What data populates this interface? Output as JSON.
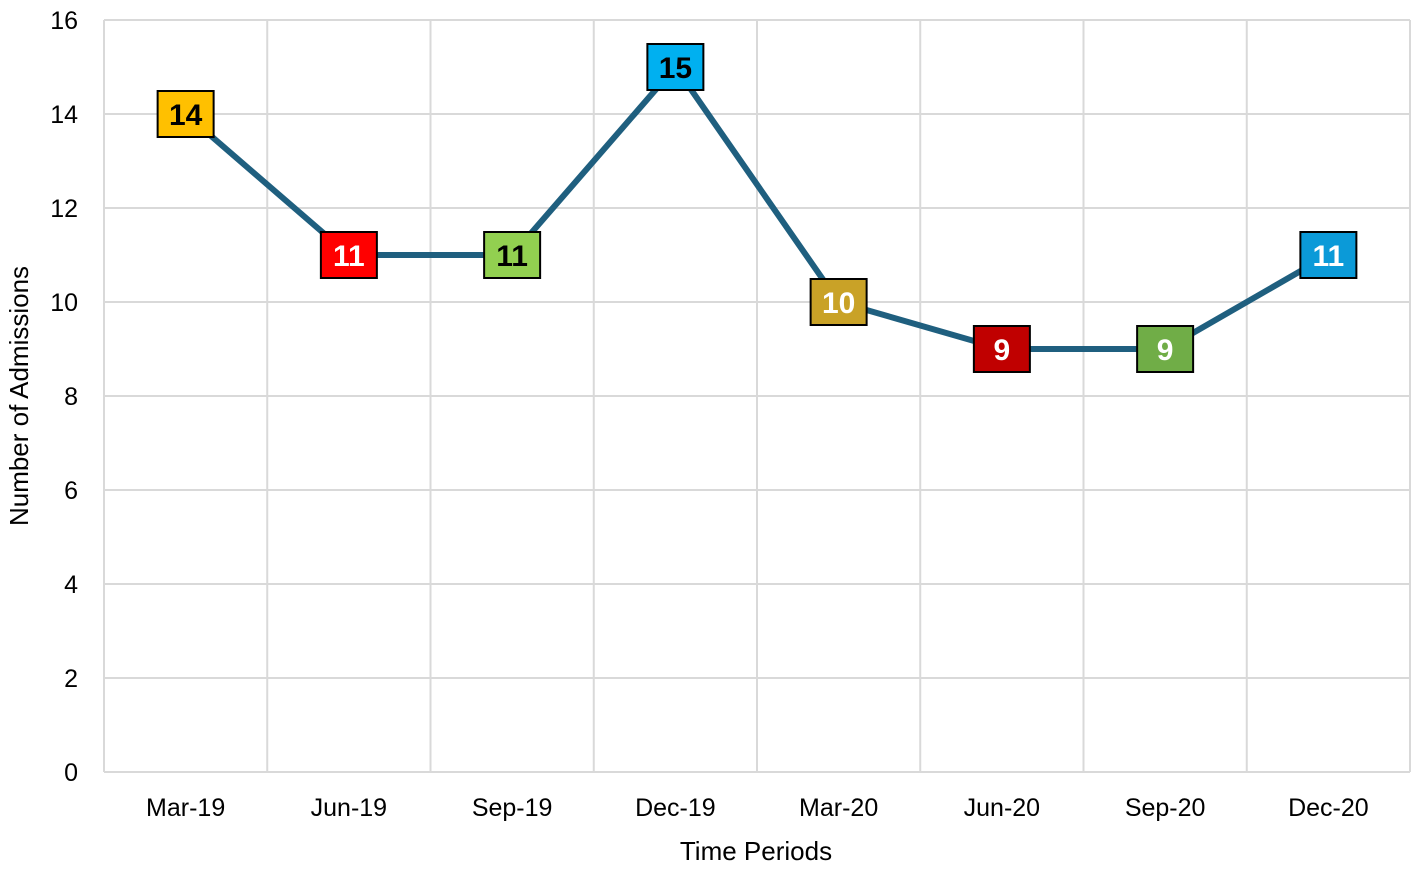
{
  "chart_data": {
    "type": "line",
    "title": "",
    "xlabel": "Time Periods",
    "ylabel": "Number of Admissions",
    "categories": [
      "Mar-19",
      "Jun-19",
      "Sep-19",
      "Dec-19",
      "Mar-20",
      "Jun-20",
      "Sep-20",
      "Dec-20"
    ],
    "values": [
      14,
      11,
      11,
      15,
      10,
      9,
      9,
      11
    ],
    "ylim": [
      0,
      16
    ],
    "yticks": [
      "0",
      "2",
      "4",
      "6",
      "8",
      "10",
      "12",
      "14",
      "16"
    ],
    "grid": true,
    "legend": "none",
    "line_color": "#1f5f7f",
    "marker_colors": [
      "#ffc000",
      "#ff0000",
      "#92d050",
      "#00b0f0",
      "#c9a227",
      "#c00000",
      "#70ad47",
      "#0b9ad8"
    ],
    "marker_text_colors": [
      "#000000",
      "#ffffff",
      "#000000",
      "#000000",
      "#ffffff",
      "#ffffff",
      "#ffffff",
      "#ffffff"
    ]
  }
}
